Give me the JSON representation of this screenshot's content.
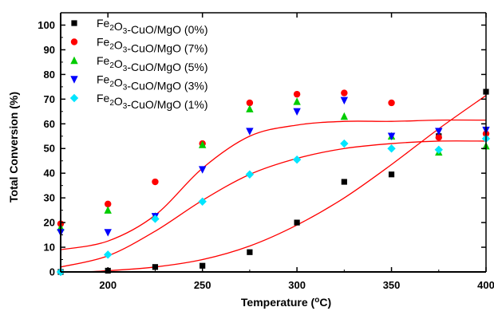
{
  "chart_data": {
    "type": "scatter",
    "xlabel": "Temperature (°C)",
    "xlabel_parts": {
      "pre": "Temperature (",
      "sup": "o",
      "post": "C)"
    },
    "ylabel": "Total Conversion (%)",
    "xlim": [
      175,
      400
    ],
    "ylim": [
      0,
      105
    ],
    "xticks": [
      200,
      250,
      300,
      350,
      400
    ],
    "yticks": [
      0,
      10,
      20,
      30,
      40,
      50,
      60,
      70,
      80,
      90,
      100
    ],
    "legend_position": "top-left",
    "series": [
      {
        "name": "Fe2O3-CuO/MgO (0%)",
        "label_parts": [
          "Fe",
          "2",
          "O",
          "3",
          "-CuO/MgO (0%)"
        ],
        "marker": "square",
        "color": "#000000",
        "x": [
          175,
          200,
          225,
          250,
          275,
          300,
          325,
          350,
          375,
          400
        ],
        "y": [
          0,
          0.5,
          2,
          2.5,
          8,
          20,
          36.5,
          39.5,
          55,
          73
        ]
      },
      {
        "name": "Fe2O3-CuO/MgO (7%)",
        "label_parts": [
          "Fe",
          "2",
          "O",
          "3",
          "-CuO/MgO (7%)"
        ],
        "marker": "circle",
        "color": "#ff0000",
        "x": [
          175,
          200,
          225,
          250,
          275,
          300,
          325,
          350,
          375,
          400
        ],
        "y": [
          19.5,
          27.5,
          36.5,
          52,
          68.5,
          72,
          72.5,
          68.5,
          54.5,
          56
        ]
      },
      {
        "name": "Fe2O3-CuO/MgO (5%)",
        "label_parts": [
          "Fe",
          "2",
          "O",
          "3",
          "-CuO/MgO (5%)"
        ],
        "marker": "triangle-up",
        "color": "#00cc00",
        "x": [
          175,
          200,
          225,
          250,
          275,
          300,
          325,
          350,
          375,
          400
        ],
        "y": [
          18,
          25,
          22.5,
          51.5,
          66,
          69,
          63,
          55,
          48.5,
          51
        ]
      },
      {
        "name": "Fe2O3-CuO/MgO (3%)",
        "label_parts": [
          "Fe",
          "2",
          "O",
          "3",
          "-CuO/MgO (3%)"
        ],
        "marker": "triangle-down",
        "color": "#0000ff",
        "x": [
          175,
          200,
          225,
          250,
          275,
          300,
          325,
          350,
          375,
          400
        ],
        "y": [
          16,
          16,
          22.5,
          41.5,
          57,
          65,
          69.5,
          55,
          57,
          57.5
        ]
      },
      {
        "name": "Fe2O3-CuO/MgO (1%)",
        "label_parts": [
          "Fe",
          "2",
          "O",
          "3",
          "-CuO/MgO (1%)"
        ],
        "marker": "diamond",
        "color": "#00e5ff",
        "x": [
          175,
          200,
          225,
          250,
          275,
          300,
          325,
          350,
          375,
          400
        ],
        "y": [
          0,
          7,
          21.5,
          28.5,
          39.5,
          45.5,
          52,
          50,
          49.5,
          54
        ]
      }
    ],
    "fit_curves": [
      {
        "color": "#ff0000",
        "x": [
          175,
          200,
          225,
          250,
          275,
          300,
          325,
          350,
          375,
          400
        ],
        "y": [
          9,
          12.5,
          23,
          42,
          55,
          59.5,
          61,
          61,
          61.5,
          61.5
        ]
      },
      {
        "color": "#ff0000",
        "x": [
          175,
          200,
          225,
          250,
          275,
          300,
          325,
          350,
          375,
          400
        ],
        "y": [
          2,
          6.5,
          16.5,
          29,
          39.5,
          46,
          50,
          52,
          53,
          53
        ]
      },
      {
        "color": "#ff0000",
        "x": [
          175,
          200,
          225,
          250,
          275,
          300,
          325,
          350,
          375,
          400
        ],
        "y": [
          -0.5,
          0.5,
          2,
          5,
          10.5,
          19,
          30,
          43.5,
          58,
          71.5
        ]
      }
    ]
  }
}
